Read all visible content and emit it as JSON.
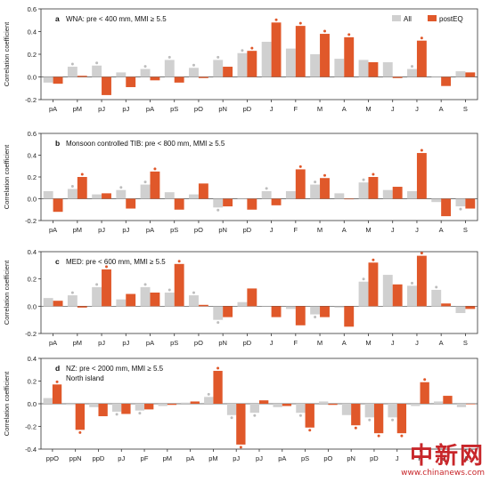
{
  "legend": [
    {
      "label": "All",
      "color": "#d0d0d0"
    },
    {
      "label": "postEQ",
      "color": "#e0582a"
    }
  ],
  "ylabel": "Correlation coefficient",
  "watermark": {
    "cn": "中新网",
    "en": "www.chinanews.com"
  },
  "chart_data": [
    {
      "type": "bar",
      "panel": "a",
      "title": "WNA: pre < 400 mm, MMI ≥ 5.5",
      "subtitle": "",
      "ylabel": "Correlation coefficient",
      "ylim": [
        -0.2,
        0.6
      ],
      "yticks": [
        -0.2,
        0.0,
        0.2,
        0.4,
        0.6
      ],
      "categories": [
        "pA",
        "pM",
        "pJ",
        "pJ",
        "pA",
        "pS",
        "pO",
        "pN",
        "pD",
        "J",
        "F",
        "M",
        "A",
        "M",
        "J",
        "J",
        "A",
        "S"
      ],
      "series": [
        {
          "name": "All",
          "values": [
            -0.05,
            0.09,
            0.1,
            0.04,
            0.07,
            0.15,
            0.08,
            0.15,
            0.21,
            0.31,
            0.25,
            0.2,
            0.16,
            0.15,
            0.13,
            0.07,
            0.0,
            0.05
          ],
          "sig": [
            false,
            true,
            true,
            false,
            true,
            true,
            true,
            true,
            true,
            false,
            false,
            false,
            false,
            false,
            false,
            true,
            false,
            false
          ]
        },
        {
          "name": "postEQ",
          "values": [
            -0.06,
            0.01,
            -0.16,
            -0.09,
            -0.03,
            -0.05,
            -0.01,
            0.09,
            0.23,
            0.48,
            0.45,
            0.38,
            0.35,
            0.13,
            -0.01,
            0.32,
            -0.08,
            0.04
          ],
          "sig": [
            false,
            false,
            false,
            false,
            false,
            false,
            false,
            false,
            true,
            true,
            true,
            true,
            true,
            false,
            false,
            true,
            false,
            false
          ]
        }
      ]
    },
    {
      "type": "bar",
      "panel": "b",
      "title": "Monsoon controlled TIB: pre < 800 mm, MMI ≥ 5.5",
      "subtitle": "",
      "ylabel": "Correlation coefficient",
      "ylim": [
        -0.2,
        0.6
      ],
      "yticks": [
        -0.2,
        0.0,
        0.2,
        0.4,
        0.6
      ],
      "categories": [
        "pA",
        "pM",
        "pJ",
        "pJ",
        "pA",
        "pS",
        "pO",
        "pN",
        "pD",
        "J",
        "F",
        "M",
        "A",
        "M",
        "J",
        "J",
        "A",
        "S"
      ],
      "series": [
        {
          "name": "All",
          "values": [
            0.07,
            0.09,
            0.04,
            0.08,
            0.13,
            0.06,
            0.04,
            -0.08,
            0.0,
            0.07,
            0.07,
            0.13,
            0.05,
            0.15,
            0.08,
            0.07,
            -0.03,
            -0.07
          ],
          "sig": [
            false,
            true,
            false,
            true,
            true,
            false,
            false,
            true,
            false,
            true,
            false,
            true,
            false,
            true,
            false,
            false,
            false,
            true
          ]
        },
        {
          "name": "postEQ",
          "values": [
            -0.12,
            0.2,
            0.05,
            -0.09,
            0.25,
            -0.1,
            0.14,
            -0.07,
            -0.1,
            -0.06,
            0.27,
            0.19,
            0.0,
            0.2,
            0.11,
            0.42,
            -0.16,
            -0.09
          ],
          "sig": [
            false,
            true,
            false,
            false,
            true,
            false,
            false,
            false,
            false,
            false,
            true,
            true,
            false,
            true,
            false,
            true,
            false,
            false
          ]
        }
      ]
    },
    {
      "type": "bar",
      "panel": "c",
      "title": "MED: pre < 600 mm, MMI ≥ 5.5",
      "subtitle": "",
      "ylabel": "Correlation coefficient",
      "ylim": [
        -0.2,
        0.4
      ],
      "yticks": [
        -0.2,
        0.0,
        0.2,
        0.4
      ],
      "categories": [
        "pA",
        "pM",
        "pJ",
        "pJ",
        "pA",
        "pS",
        "pO",
        "pN",
        "pD",
        "J",
        "F",
        "M",
        "A",
        "M",
        "J",
        "J",
        "A",
        "S"
      ],
      "series": [
        {
          "name": "All",
          "values": [
            0.06,
            0.08,
            0.14,
            0.05,
            0.14,
            0.1,
            0.08,
            -0.1,
            0.03,
            0.0,
            -0.02,
            -0.06,
            -0.01,
            0.18,
            0.23,
            0.15,
            0.12,
            -0.05
          ],
          "sig": [
            false,
            true,
            true,
            false,
            true,
            true,
            true,
            true,
            false,
            false,
            false,
            true,
            false,
            true,
            false,
            true,
            true,
            false
          ]
        },
        {
          "name": "postEQ",
          "values": [
            0.04,
            -0.01,
            0.27,
            0.09,
            0.1,
            0.31,
            0.01,
            -0.08,
            0.13,
            -0.08,
            -0.14,
            -0.08,
            -0.15,
            0.32,
            0.16,
            0.37,
            0.02,
            -0.02
          ],
          "sig": [
            false,
            false,
            true,
            false,
            false,
            true,
            false,
            false,
            false,
            false,
            false,
            false,
            false,
            true,
            false,
            true,
            false,
            false
          ]
        }
      ]
    },
    {
      "type": "bar",
      "panel": "d",
      "title": "NZ: pre < 2000 mm, MMI ≥ 5.5",
      "subtitle": "North island",
      "ylabel": "Correlation coefficient",
      "ylim": [
        -0.4,
        0.4
      ],
      "yticks": [
        -0.4,
        -0.2,
        0.0,
        0.2,
        0.4
      ],
      "categories": [
        "ppO",
        "ppN",
        "ppD",
        "pJ",
        "pF",
        "pM",
        "pA",
        "pM",
        "pJ",
        "pJ",
        "pA",
        "pS",
        "pO",
        "pN",
        "pD",
        "J",
        "F",
        "M",
        "A"
      ],
      "series": [
        {
          "name": "All",
          "values": [
            0.05,
            -0.01,
            -0.03,
            -0.07,
            -0.06,
            -0.02,
            0.01,
            0.06,
            -0.1,
            -0.08,
            -0.03,
            -0.08,
            0.02,
            -0.1,
            -0.12,
            -0.12,
            -0.02,
            0.02,
            -0.03
          ],
          "sig": [
            false,
            false,
            false,
            true,
            true,
            false,
            false,
            true,
            true,
            true,
            false,
            true,
            false,
            false,
            true,
            true,
            false,
            false,
            false
          ]
        },
        {
          "name": "postEQ",
          "values": [
            0.17,
            -0.23,
            -0.11,
            -0.09,
            -0.05,
            -0.01,
            0.02,
            0.29,
            -0.36,
            0.03,
            -0.02,
            -0.21,
            -0.01,
            -0.19,
            -0.26,
            -0.26,
            0.19,
            0.07,
            0.0
          ],
          "sig": [
            true,
            true,
            false,
            false,
            false,
            false,
            false,
            true,
            true,
            false,
            false,
            true,
            false,
            true,
            true,
            true,
            true,
            false,
            false
          ]
        }
      ]
    }
  ]
}
